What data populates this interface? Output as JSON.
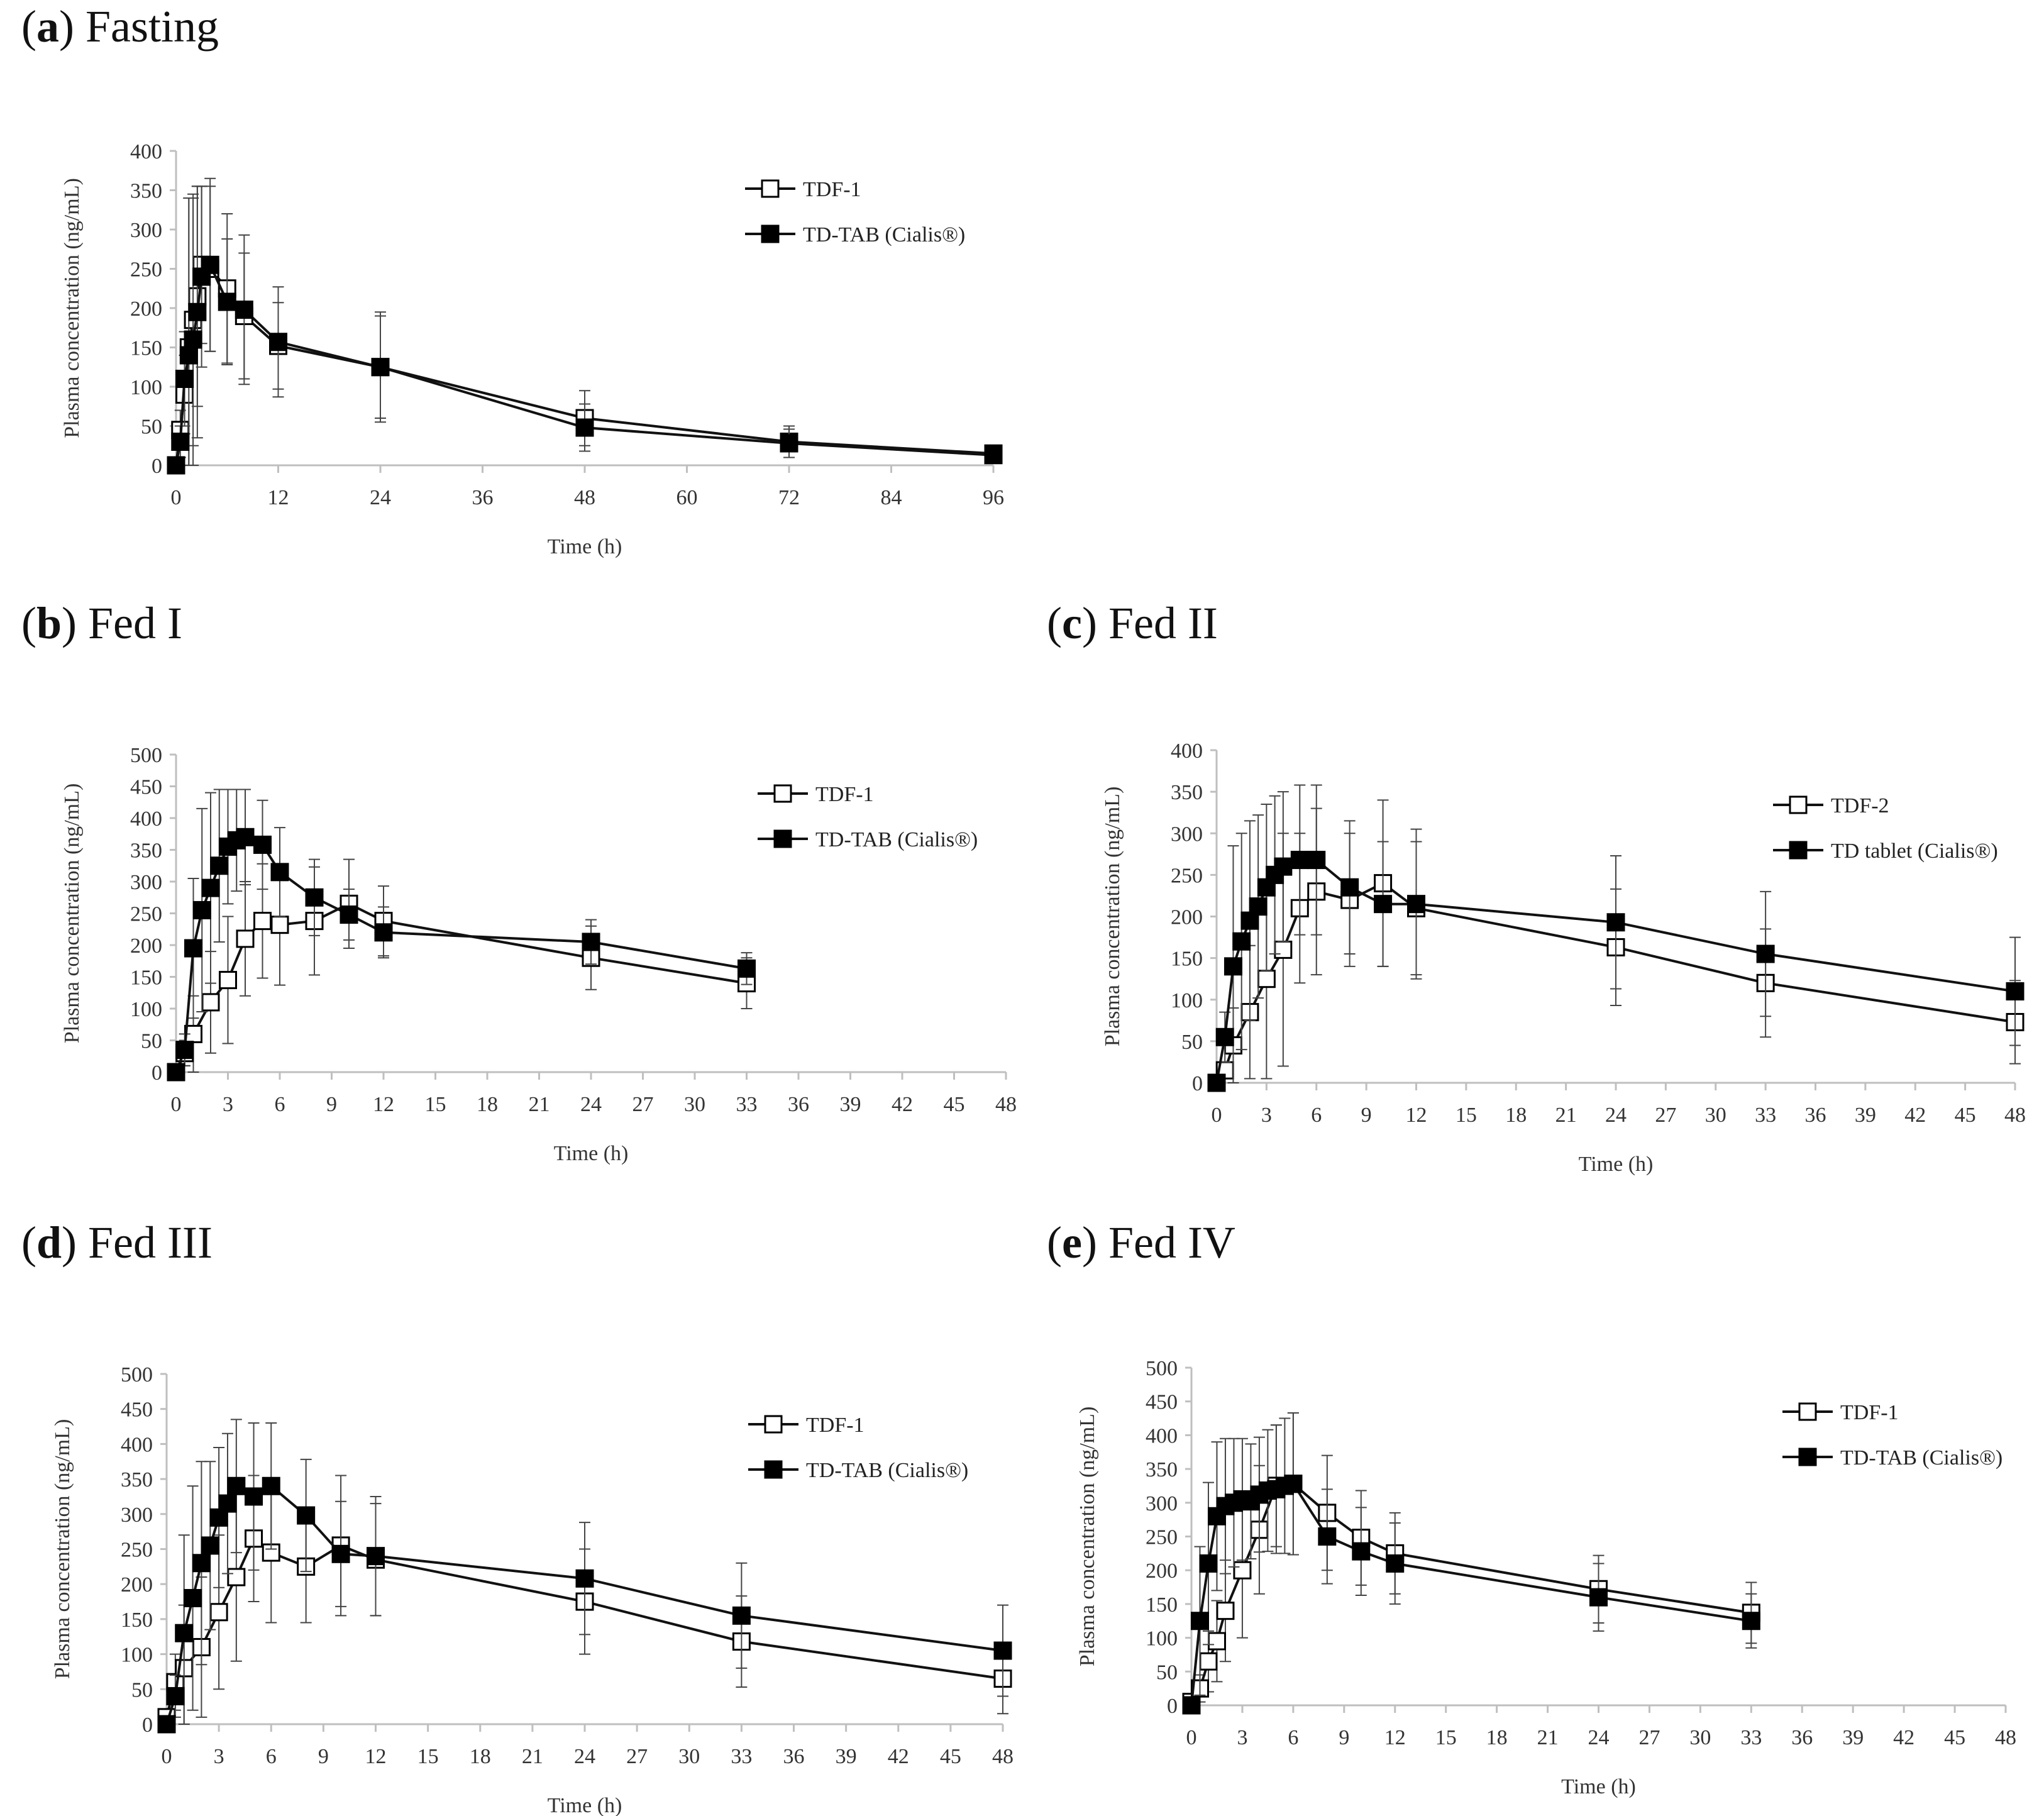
{
  "panels": [
    {
      "letter": "a",
      "name": "Fasting"
    },
    {
      "letter": "b",
      "name": "Fed I"
    },
    {
      "letter": "c",
      "name": "Fed II"
    },
    {
      "letter": "d",
      "name": "Fed III"
    },
    {
      "letter": "e",
      "name": "Fed IV"
    }
  ],
  "colors": {
    "line": "#111111",
    "marker_edge": "#000000",
    "axis": "#bfbfbf",
    "text": "#333333"
  },
  "chart_data": [
    {
      "id": "a",
      "type": "line",
      "title": "Fasting",
      "xlabel": "Time (h)",
      "ylabel": "Plasma concentration (ng/mL)",
      "xlim": [
        0,
        96
      ],
      "ylim": [
        0,
        400
      ],
      "xticks": [
        0,
        12,
        24,
        36,
        48,
        60,
        72,
        84,
        96
      ],
      "yticks": [
        0,
        50,
        100,
        150,
        200,
        250,
        300,
        350,
        400
      ],
      "legend_position": "top-right",
      "series": [
        {
          "name": "TDF-1",
          "marker": "open-square",
          "x": [
            0,
            0.5,
            1,
            1.5,
            2,
            2.5,
            3,
            4,
            6,
            8,
            12,
            24,
            48,
            72,
            96
          ],
          "y": [
            0,
            45,
            90,
            150,
            185,
            215,
            255,
            250,
            225,
            190,
            152,
            125,
            60,
            30,
            15
          ],
          "err": [
            0,
            25,
            50,
            190,
            160,
            140,
            100,
            105,
            95,
            80,
            55,
            70,
            35,
            20,
            10
          ]
        },
        {
          "name": "TD-TAB (Cialis®)",
          "marker": "filled-square",
          "x": [
            0,
            0.5,
            1,
            1.5,
            2,
            2.5,
            3,
            4,
            6,
            8,
            12,
            24,
            48,
            72,
            96
          ],
          "y": [
            0,
            30,
            110,
            140,
            160,
            195,
            240,
            255,
            208,
            198,
            157,
            125,
            48,
            28,
            13
          ],
          "err": [
            0,
            20,
            60,
            200,
            180,
            160,
            115,
            110,
            80,
            95,
            70,
            65,
            30,
            18,
            10
          ]
        }
      ]
    },
    {
      "id": "b",
      "type": "line",
      "title": "Fed I",
      "xlabel": "Time (h)",
      "ylabel": "Plasma concentration (ng/mL)",
      "xlim": [
        0,
        48
      ],
      "ylim": [
        0,
        500
      ],
      "xticks": [
        0,
        3,
        6,
        9,
        12,
        15,
        18,
        21,
        24,
        27,
        30,
        33,
        36,
        39,
        42,
        45,
        48
      ],
      "yticks": [
        0,
        50,
        100,
        150,
        200,
        250,
        300,
        350,
        400,
        450,
        500
      ],
      "legend_position": "top-right",
      "series": [
        {
          "name": "TDF-1",
          "marker": "open-square",
          "x": [
            0,
            0.5,
            1,
            2,
            3,
            4,
            5,
            6,
            8,
            10,
            12,
            24,
            33
          ],
          "y": [
            0,
            30,
            60,
            110,
            145,
            210,
            238,
            232,
            238,
            265,
            238,
            180,
            140
          ],
          "err": [
            0,
            20,
            60,
            80,
            100,
            90,
            90,
            95,
            85,
            70,
            55,
            50,
            40
          ]
        },
        {
          "name": "TD-TAB (Cialis®)",
          "marker": "filled-square",
          "x": [
            0,
            0.5,
            1,
            1.5,
            2,
            2.5,
            3,
            3.5,
            4,
            5,
            6,
            8,
            10,
            12,
            24,
            33
          ],
          "y": [
            0,
            35,
            195,
            255,
            290,
            325,
            355,
            365,
            370,
            358,
            315,
            275,
            248,
            220,
            205,
            163
          ],
          "err": [
            0,
            25,
            110,
            160,
            150,
            120,
            90,
            80,
            75,
            70,
            70,
            60,
            40,
            40,
            35,
            25
          ]
        }
      ]
    },
    {
      "id": "c",
      "type": "line",
      "title": "Fed II",
      "xlabel": "Time (h)",
      "ylabel": "Plasma concentration (ng/mL)",
      "xlim": [
        0,
        48
      ],
      "ylim": [
        0,
        400
      ],
      "xticks": [
        0,
        3,
        6,
        9,
        12,
        15,
        18,
        21,
        24,
        27,
        30,
        33,
        36,
        39,
        42,
        45,
        48
      ],
      "yticks": [
        0,
        50,
        100,
        150,
        200,
        250,
        300,
        350,
        400
      ],
      "legend_position": "top-right",
      "series": [
        {
          "name": "TDF-2",
          "marker": "open-square",
          "x": [
            0,
            0.5,
            1,
            2,
            3,
            4,
            5,
            6,
            8,
            10,
            12,
            24,
            33,
            48
          ],
          "y": [
            0,
            15,
            45,
            85,
            125,
            160,
            210,
            230,
            220,
            240,
            210,
            163,
            120,
            73
          ],
          "err": [
            0,
            10,
            45,
            80,
            120,
            140,
            90,
            100,
            80,
            100,
            80,
            70,
            65,
            50
          ]
        },
        {
          "name": "TD tablet (Cialis®)",
          "marker": "filled-square",
          "x": [
            0,
            0.5,
            1,
            1.5,
            2,
            2.5,
            3,
            3.5,
            4,
            5,
            6,
            8,
            10,
            12,
            24,
            33,
            48
          ],
          "y": [
            0,
            55,
            140,
            170,
            195,
            212,
            235,
            250,
            260,
            268,
            268,
            235,
            215,
            215,
            193,
            155,
            110
          ],
          "err": [
            0,
            30,
            145,
            130,
            120,
            110,
            100,
            95,
            90,
            90,
            90,
            80,
            75,
            90,
            80,
            75,
            65
          ]
        }
      ]
    },
    {
      "id": "d",
      "type": "line",
      "title": "Fed III",
      "xlabel": "Time (h)",
      "ylabel": "Plasma concentration (ng/mL)",
      "xlim": [
        0,
        48
      ],
      "ylim": [
        0,
        500
      ],
      "xticks": [
        0,
        3,
        6,
        9,
        12,
        15,
        18,
        21,
        24,
        27,
        30,
        33,
        36,
        39,
        42,
        45,
        48
      ],
      "yticks": [
        0,
        50,
        100,
        150,
        200,
        250,
        300,
        350,
        400,
        450,
        500
      ],
      "legend_position": "top-right",
      "series": [
        {
          "name": "TDF-1",
          "marker": "open-square",
          "x": [
            0,
            0.5,
            1,
            2,
            3,
            4,
            5,
            6,
            8,
            10,
            12,
            24,
            33,
            48
          ],
          "y": [
            10,
            60,
            80,
            110,
            160,
            210,
            265,
            245,
            225,
            255,
            235,
            175,
            118,
            65
          ],
          "err": [
            0,
            40,
            90,
            100,
            110,
            120,
            90,
            100,
            80,
            100,
            80,
            75,
            65,
            50
          ]
        },
        {
          "name": "TD-TAB (Cialis®)",
          "marker": "filled-square",
          "x": [
            0,
            0.5,
            1,
            1.5,
            2,
            2.5,
            3,
            3.5,
            4,
            5,
            6,
            8,
            10,
            12,
            24,
            33,
            48
          ],
          "y": [
            0,
            40,
            130,
            180,
            230,
            255,
            295,
            315,
            340,
            325,
            340,
            298,
            243,
            240,
            208,
            155,
            105
          ],
          "err": [
            0,
            30,
            140,
            160,
            145,
            120,
            100,
            100,
            95,
            105,
            90,
            80,
            75,
            85,
            80,
            75,
            65
          ]
        }
      ]
    },
    {
      "id": "e",
      "type": "line",
      "title": "Fed IV",
      "xlabel": "Time (h)",
      "ylabel": "Plasma concentration (ng/mL)",
      "xlim": [
        0,
        48
      ],
      "ylim": [
        0,
        500
      ],
      "xticks": [
        0,
        3,
        6,
        9,
        12,
        15,
        18,
        21,
        24,
        27,
        30,
        33,
        36,
        39,
        42,
        45,
        48
      ],
      "yticks": [
        0,
        50,
        100,
        150,
        200,
        250,
        300,
        350,
        400,
        450,
        500
      ],
      "legend_position": "top-right",
      "series": [
        {
          "name": "TDF-1",
          "marker": "open-square",
          "x": [
            0,
            0.5,
            1,
            1.5,
            2,
            3,
            4,
            5,
            6,
            8,
            10,
            12,
            24,
            33
          ],
          "y": [
            5,
            25,
            65,
            95,
            140,
            200,
            260,
            325,
            328,
            285,
            248,
            225,
            172,
            137
          ],
          "err": [
            0,
            20,
            45,
            60,
            75,
            100,
            95,
            90,
            105,
            85,
            70,
            60,
            50,
            45
          ]
        },
        {
          "name": "TD-TAB (Cialis®)",
          "marker": "filled-square",
          "x": [
            0,
            0.5,
            1,
            1.5,
            2,
            2.5,
            3,
            3.5,
            4,
            4.5,
            5,
            5.5,
            6,
            8,
            10,
            12,
            24,
            33
          ],
          "y": [
            0,
            125,
            210,
            280,
            295,
            300,
            305,
            302,
            312,
            318,
            320,
            325,
            328,
            250,
            228,
            210,
            160,
            125
          ],
          "err": [
            0,
            110,
            120,
            110,
            100,
            95,
            90,
            85,
            85,
            90,
            95,
            100,
            105,
            70,
            65,
            60,
            50,
            40
          ]
        }
      ]
    }
  ]
}
